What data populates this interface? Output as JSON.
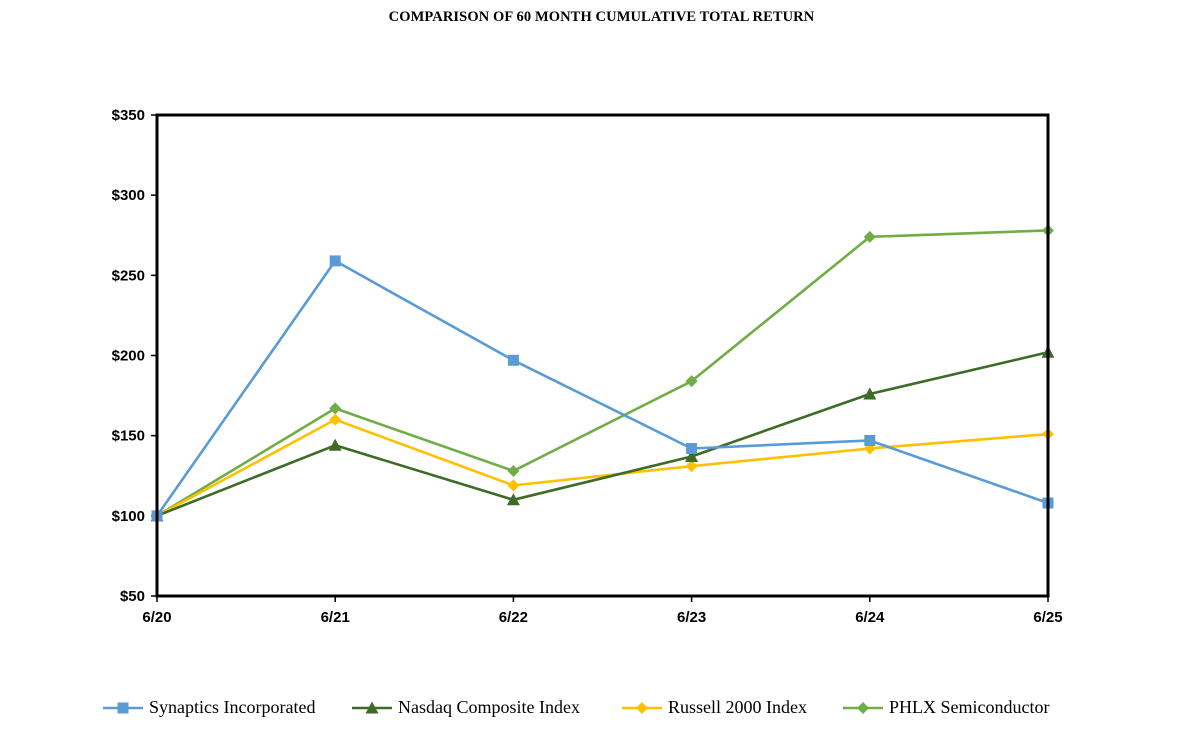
{
  "chart_data": {
    "type": "line",
    "title": "COMPARISON OF 60 MONTH CUMULATIVE TOTAL RETURN",
    "xlabel": "",
    "ylabel": "",
    "categories": [
      "6/20",
      "6/21",
      "6/22",
      "6/23",
      "6/24",
      "6/25"
    ],
    "y_tick_labels": [
      "$50",
      "$100",
      "$150",
      "$200",
      "$250",
      "$300",
      "$350"
    ],
    "ylim": [
      50,
      350
    ],
    "grid": false,
    "legend_position": "bottom",
    "series": [
      {
        "name": "Synaptics Incorporated",
        "color": "#5B9BD5",
        "marker": "square",
        "values": [
          100,
          259,
          197,
          142,
          147,
          108
        ]
      },
      {
        "name": "Nasdaq Composite Index",
        "color": "#3E6B27",
        "marker": "triangle",
        "values": [
          100,
          144,
          110,
          137,
          176,
          202
        ]
      },
      {
        "name": "Russell 2000 Index",
        "color": "#FFC000",
        "marker": "diamond",
        "values": [
          100,
          160,
          119,
          131,
          142,
          151
        ]
      },
      {
        "name": "PHLX Semiconductor",
        "color": "#70AD47",
        "marker": "diamond",
        "values": [
          100,
          167,
          128,
          184,
          274,
          278
        ]
      }
    ]
  }
}
